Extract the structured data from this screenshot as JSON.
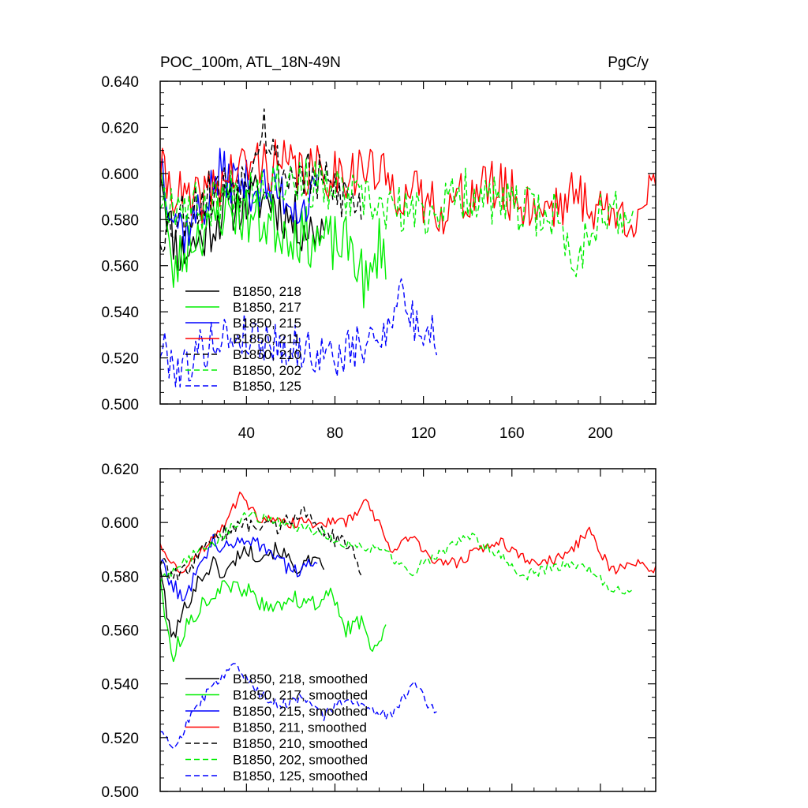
{
  "chart_data": [
    {
      "type": "line",
      "title": "POC_100m, ATL_18N-49N",
      "units": "PgC/y",
      "xlim": [
        1,
        225
      ],
      "ylim": [
        0.5,
        0.64
      ],
      "xticks": [
        40,
        80,
        120,
        160,
        200
      ],
      "xtick_labels": [
        "40",
        "80",
        "120",
        "160",
        "200"
      ],
      "yticks": [
        0.5,
        0.52,
        0.54,
        0.56,
        0.58,
        0.6,
        0.62,
        0.64
      ],
      "ytick_labels": [
        "0.500",
        "0.520",
        "0.540",
        "0.560",
        "0.580",
        "0.600",
        "0.620",
        "0.640"
      ],
      "legend_position": "lower-left",
      "series": [
        {
          "name": "B1850, 218",
          "color": "#000000",
          "dash": "solid",
          "length": 75,
          "mean": 0.583,
          "amp": 0.012,
          "seed": 11,
          "keys": [
            [
              1,
              0.606
            ],
            [
              5,
              0.578
            ],
            [
              10,
              0.565
            ],
            [
              20,
              0.572
            ],
            [
              30,
              0.585
            ],
            [
              40,
              0.588
            ],
            [
              50,
              0.59
            ],
            [
              60,
              0.58
            ],
            [
              70,
              0.575
            ],
            [
              75,
              0.578
            ]
          ]
        },
        {
          "name": "B1850, 217",
          "color": "#00ee00",
          "dash": "solid",
          "length": 103,
          "mean": 0.577,
          "amp": 0.013,
          "seed": 23,
          "keys": [
            [
              1,
              0.612
            ],
            [
              6,
              0.555
            ],
            [
              15,
              0.572
            ],
            [
              30,
              0.585
            ],
            [
              45,
              0.58
            ],
            [
              60,
              0.575
            ],
            [
              75,
              0.57
            ],
            [
              88,
              0.568
            ],
            [
              95,
              0.548
            ],
            [
              100,
              0.57
            ],
            [
              103,
              0.566
            ]
          ]
        },
        {
          "name": "B1850, 215",
          "color": "#0000ff",
          "dash": "solid",
          "length": 72,
          "mean": 0.588,
          "amp": 0.011,
          "seed": 37,
          "keys": [
            [
              1,
              0.608
            ],
            [
              6,
              0.585
            ],
            [
              12,
              0.575
            ],
            [
              20,
              0.585
            ],
            [
              28,
              0.6
            ],
            [
              40,
              0.595
            ],
            [
              55,
              0.592
            ],
            [
              65,
              0.585
            ],
            [
              72,
              0.59
            ]
          ]
        },
        {
          "name": "B1850, 211",
          "color": "#ff0000",
          "dash": "solid",
          "length": 225,
          "mean": 0.59,
          "amp": 0.012,
          "seed": 41,
          "keys": [
            [
              1,
              0.6
            ],
            [
              15,
              0.585
            ],
            [
              30,
              0.598
            ],
            [
              45,
              0.605
            ],
            [
              70,
              0.6
            ],
            [
              95,
              0.602
            ],
            [
              110,
              0.592
            ],
            [
              130,
              0.585
            ],
            [
              150,
              0.595
            ],
            [
              170,
              0.585
            ],
            [
              190,
              0.59
            ],
            [
              210,
              0.58
            ],
            [
              225,
              0.59
            ]
          ]
        },
        {
          "name": "B1850, 210",
          "color": "#000000",
          "dash": "dashed",
          "length": 92,
          "mean": 0.59,
          "amp": 0.012,
          "seed": 53,
          "keys": [
            [
              1,
              0.575
            ],
            [
              10,
              0.582
            ],
            [
              25,
              0.592
            ],
            [
              40,
              0.598
            ],
            [
              47,
              0.625
            ],
            [
              55,
              0.6
            ],
            [
              70,
              0.598
            ],
            [
              85,
              0.59
            ],
            [
              92,
              0.585
            ]
          ]
        },
        {
          "name": "B1850, 202",
          "color": "#00ee00",
          "dash": "dashed",
          "length": 215,
          "mean": 0.585,
          "amp": 0.011,
          "seed": 67,
          "keys": [
            [
              1,
              0.59
            ],
            [
              20,
              0.585
            ],
            [
              40,
              0.596
            ],
            [
              60,
              0.598
            ],
            [
              80,
              0.592
            ],
            [
              100,
              0.585
            ],
            [
              120,
              0.582
            ],
            [
              140,
              0.592
            ],
            [
              160,
              0.585
            ],
            [
              180,
              0.582
            ],
            [
              188,
              0.56
            ],
            [
              200,
              0.585
            ],
            [
              215,
              0.578
            ]
          ]
        },
        {
          "name": "B1850, 125",
          "color": "#0000ff",
          "dash": "dashed",
          "length": 126,
          "mean": 0.527,
          "amp": 0.01,
          "seed": 79,
          "keys": [
            [
              1,
              0.525
            ],
            [
              10,
              0.515
            ],
            [
              25,
              0.528
            ],
            [
              40,
              0.53
            ],
            [
              60,
              0.525
            ],
            [
              80,
              0.52
            ],
            [
              100,
              0.528
            ],
            [
              110,
              0.55
            ],
            [
              115,
              0.535
            ],
            [
              125,
              0.53
            ]
          ]
        }
      ]
    },
    {
      "type": "line",
      "xlim": [
        1,
        225
      ],
      "ylim": [
        0.5,
        0.62
      ],
      "xticks": [
        40,
        80,
        120,
        160,
        200
      ],
      "yticks": [
        0.5,
        0.52,
        0.54,
        0.56,
        0.58,
        0.6,
        0.62
      ],
      "ytick_labels": [
        "0.500",
        "0.520",
        "0.540",
        "0.560",
        "0.580",
        "0.600",
        "0.620"
      ],
      "legend_position": "lower-left",
      "series": [
        {
          "name": "B1850, 218, smoothed",
          "color": "#000000",
          "dash": "solid",
          "length": 75,
          "amp": 0.003,
          "seed": 101,
          "keys": [
            [
              1,
              0.585
            ],
            [
              4,
              0.565
            ],
            [
              7,
              0.557
            ],
            [
              12,
              0.568
            ],
            [
              18,
              0.578
            ],
            [
              25,
              0.585
            ],
            [
              30,
              0.58
            ],
            [
              38,
              0.59
            ],
            [
              45,
              0.588
            ],
            [
              55,
              0.59
            ],
            [
              62,
              0.583
            ],
            [
              68,
              0.585
            ],
            [
              75,
              0.584
            ]
          ]
        },
        {
          "name": "B1850, 217, smoothed",
          "color": "#00ee00",
          "dash": "solid",
          "length": 103,
          "amp": 0.003,
          "seed": 113,
          "keys": [
            [
              1,
              0.58
            ],
            [
              4,
              0.56
            ],
            [
              7,
              0.551
            ],
            [
              12,
              0.56
            ],
            [
              20,
              0.57
            ],
            [
              30,
              0.576
            ],
            [
              40,
              0.575
            ],
            [
              50,
              0.567
            ],
            [
              60,
              0.572
            ],
            [
              70,
              0.57
            ],
            [
              78,
              0.573
            ],
            [
              85,
              0.56
            ],
            [
              92,
              0.563
            ],
            [
              97,
              0.554
            ],
            [
              100,
              0.556
            ],
            [
              103,
              0.565
            ]
          ]
        },
        {
          "name": "B1850, 215, smoothed",
          "color": "#0000ff",
          "dash": "solid",
          "length": 72,
          "amp": 0.003,
          "seed": 127,
          "keys": [
            [
              1,
              0.586
            ],
            [
              6,
              0.578
            ],
            [
              12,
              0.57
            ],
            [
              18,
              0.585
            ],
            [
              25,
              0.593
            ],
            [
              32,
              0.59
            ],
            [
              40,
              0.595
            ],
            [
              50,
              0.59
            ],
            [
              58,
              0.583
            ],
            [
              65,
              0.582
            ],
            [
              72,
              0.586
            ]
          ]
        },
        {
          "name": "B1850, 211, smoothed",
          "color": "#ff0000",
          "dash": "solid",
          "length": 225,
          "amp": 0.002,
          "seed": 131,
          "keys": [
            [
              1,
              0.593
            ],
            [
              5,
              0.585
            ],
            [
              12,
              0.582
            ],
            [
              20,
              0.59
            ],
            [
              30,
              0.6
            ],
            [
              37,
              0.61
            ],
            [
              45,
              0.602
            ],
            [
              55,
              0.6
            ],
            [
              70,
              0.6
            ],
            [
              85,
              0.6
            ],
            [
              95,
              0.608
            ],
            [
              105,
              0.59
            ],
            [
              115,
              0.595
            ],
            [
              125,
              0.585
            ],
            [
              135,
              0.585
            ],
            [
              145,
              0.59
            ],
            [
              155,
              0.593
            ],
            [
              165,
              0.587
            ],
            [
              175,
              0.585
            ],
            [
              185,
              0.588
            ],
            [
              195,
              0.597
            ],
            [
              205,
              0.582
            ],
            [
              215,
              0.585
            ],
            [
              225,
              0.583
            ]
          ]
        },
        {
          "name": "B1850, 210, smoothed",
          "color": "#000000",
          "dash": "dashed",
          "length": 92,
          "amp": 0.003,
          "seed": 139,
          "keys": [
            [
              1,
              0.585
            ],
            [
              8,
              0.58
            ],
            [
              15,
              0.583
            ],
            [
              25,
              0.595
            ],
            [
              35,
              0.598
            ],
            [
              45,
              0.6
            ],
            [
              55,
              0.598
            ],
            [
              65,
              0.605
            ],
            [
              75,
              0.596
            ],
            [
              85,
              0.592
            ],
            [
              92,
              0.583
            ]
          ]
        },
        {
          "name": "B1850, 202, smoothed",
          "color": "#00ee00",
          "dash": "dashed",
          "length": 215,
          "amp": 0.002,
          "seed": 149,
          "keys": [
            [
              1,
              0.578
            ],
            [
              10,
              0.585
            ],
            [
              25,
              0.592
            ],
            [
              40,
              0.603
            ],
            [
              55,
              0.6
            ],
            [
              70,
              0.597
            ],
            [
              85,
              0.592
            ],
            [
              100,
              0.59
            ],
            [
              115,
              0.582
            ],
            [
              130,
              0.59
            ],
            [
              140,
              0.595
            ],
            [
              155,
              0.588
            ],
            [
              165,
              0.58
            ],
            [
              180,
              0.584
            ],
            [
              195,
              0.583
            ],
            [
              205,
              0.575
            ],
            [
              215,
              0.574
            ]
          ]
        },
        {
          "name": "B1850, 125, smoothed",
          "color": "#0000ff",
          "dash": "dashed",
          "length": 126,
          "amp": 0.002,
          "seed": 157,
          "keys": [
            [
              1,
              0.523
            ],
            [
              8,
              0.517
            ],
            [
              15,
              0.528
            ],
            [
              25,
              0.54
            ],
            [
              35,
              0.548
            ],
            [
              45,
              0.537
            ],
            [
              55,
              0.532
            ],
            [
              65,
              0.535
            ],
            [
              75,
              0.528
            ],
            [
              85,
              0.535
            ],
            [
              95,
              0.53
            ],
            [
              105,
              0.528
            ],
            [
              115,
              0.54
            ],
            [
              120,
              0.535
            ],
            [
              126,
              0.528
            ]
          ]
        }
      ]
    }
  ]
}
